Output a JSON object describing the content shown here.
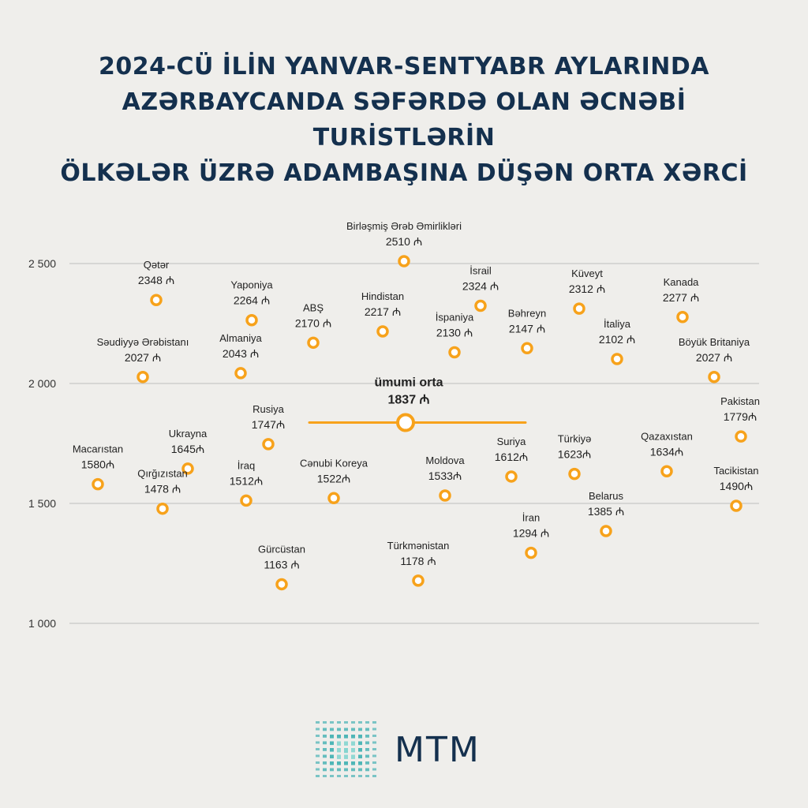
{
  "title_lines": [
    "2024-CÜ İLİN YANVAR-SENTYABR AYLARINDA",
    "AZƏRBAYCANDA SƏFƏRDƏ OLAN ƏCNƏBİ TURİSTLƏRİN",
    "ÖLKƏLƏR ÜZRƏ ADAMBAŞINA DÜŞƏN ORTA XƏRCİ"
  ],
  "logo_text": "MTM",
  "colors": {
    "title": "#14304e",
    "point": "#f7a21b",
    "grid": "#bdbdbd",
    "text": "#222222"
  },
  "chart_data": {
    "type": "scatter",
    "title": "2024-CÜ İLİN YANVAR-SENTYABR AYLARINDA AZƏRBAYCANDA SƏFƏRDƏ OLAN ƏCNƏBİ TURİSTLƏRİN ÖLKƏLƏR ÜZRƏ ADAMBAŞINA DÜŞƏN ORTA XƏRCİ",
    "ylim": [
      1000,
      2500
    ],
    "yticks": [
      1000,
      1500,
      2000,
      2500
    ],
    "ytick_labels": [
      "1 000",
      "1 500",
      "2 000",
      "2 500"
    ],
    "grid": true,
    "average": {
      "label": "ümumi orta",
      "value": 1837,
      "display": "1837 ₼"
    },
    "points": [
      {
        "name": "Birləşmiş Ərəb Əmirlikləri",
        "value": 2510,
        "display": "2510 ₼"
      },
      {
        "name": "Qətər",
        "value": 2348,
        "display": "2348 ₼"
      },
      {
        "name": "İsrail",
        "value": 2324,
        "display": "2324 ₼"
      },
      {
        "name": "Küveyt",
        "value": 2312,
        "display": "2312 ₼"
      },
      {
        "name": "Kanada",
        "value": 2277,
        "display": "2277 ₼"
      },
      {
        "name": "Yaponiya",
        "value": 2264,
        "display": "2264 ₼"
      },
      {
        "name": "Hindistan",
        "value": 2217,
        "display": "2217 ₼"
      },
      {
        "name": "ABŞ",
        "value": 2170,
        "display": "2170 ₼"
      },
      {
        "name": "Bəhreyn",
        "value": 2147,
        "display": "2147 ₼"
      },
      {
        "name": "İspaniya",
        "value": 2130,
        "display": "2130 ₼"
      },
      {
        "name": "İtaliya",
        "value": 2102,
        "display": "2102 ₼"
      },
      {
        "name": "Almaniya",
        "value": 2043,
        "display": "2043 ₼"
      },
      {
        "name": "Səudiyyə Ərəbistanı",
        "value": 2027,
        "display": "2027 ₼"
      },
      {
        "name": "Böyük Britaniya",
        "value": 2027,
        "display": "2027 ₼"
      },
      {
        "name": "Pakistan",
        "value": 1779,
        "display": "1779₼"
      },
      {
        "name": "Rusiya",
        "value": 1747,
        "display": "1747₼"
      },
      {
        "name": "Ukrayna",
        "value": 1645,
        "display": "1645₼"
      },
      {
        "name": "Qazaxıstan",
        "value": 1634,
        "display": "1634₼"
      },
      {
        "name": "Türkiyə",
        "value": 1623,
        "display": "1623₼"
      },
      {
        "name": "Suriya",
        "value": 1612,
        "display": "1612₼"
      },
      {
        "name": "Macarıstan",
        "value": 1580,
        "display": "1580₼"
      },
      {
        "name": "Moldova",
        "value": 1533,
        "display": "1533₼"
      },
      {
        "name": "Cənubi Koreya",
        "value": 1522,
        "display": "1522₼"
      },
      {
        "name": "İraq",
        "value": 1512,
        "display": "1512₼"
      },
      {
        "name": "Tacikistan",
        "value": 1490,
        "display": "1490₼"
      },
      {
        "name": "Qırğızıstan",
        "value": 1478,
        "display": "1478 ₼"
      },
      {
        "name": "Belarus",
        "value": 1385,
        "display": "1385 ₼"
      },
      {
        "name": "İran",
        "value": 1294,
        "display": "1294 ₼"
      },
      {
        "name": "Türkmənistan",
        "value": 1178,
        "display": "1178 ₼"
      },
      {
        "name": "Gürcüstan",
        "value": 1163,
        "display": "1163 ₼"
      }
    ]
  }
}
